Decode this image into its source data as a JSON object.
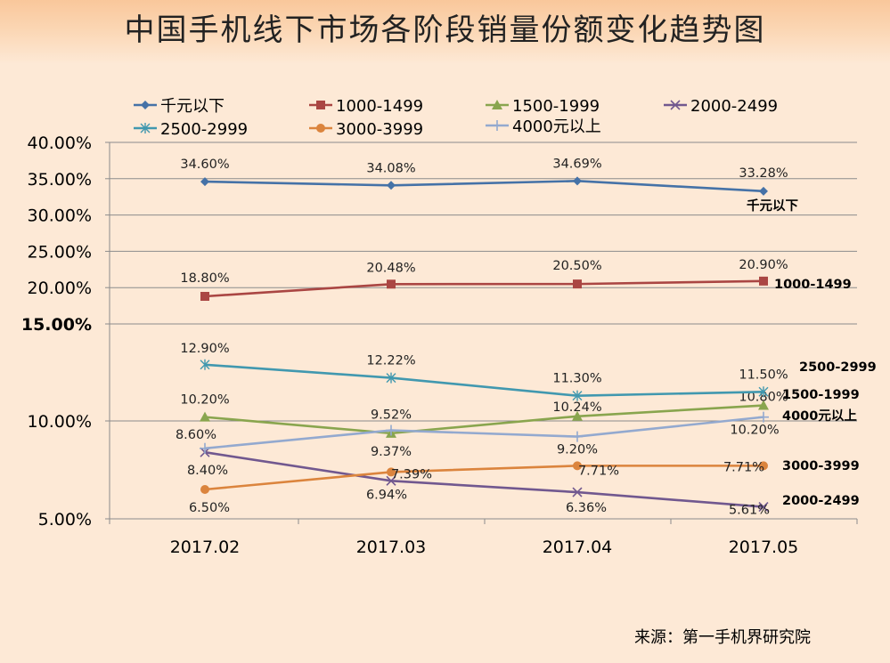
{
  "chart_data": {
    "type": "line",
    "title": "中国手机线下市场各阶段销量份额变化趋势图",
    "categories": [
      "2017.02",
      "2017.03",
      "2017.04",
      "2017.05"
    ],
    "y_ticks": [
      "5.00%",
      "10.00%",
      "15.00%",
      "20.00%",
      "25.00%",
      "30.00%",
      "35.00%",
      "40.00%"
    ],
    "ylim": [
      5,
      40
    ],
    "grid": true,
    "legend_position": "top",
    "series": [
      {
        "name": "千元以下",
        "marker": "diamond",
        "color": "#4572a7",
        "values": [
          34.6,
          34.08,
          34.69,
          33.28
        ],
        "labels": [
          "34.60%",
          "34.08%",
          "34.69%",
          "33.28%"
        ],
        "end_label": "千元以下"
      },
      {
        "name": "1000-1499",
        "marker": "square",
        "color": "#aa4643",
        "values": [
          18.8,
          20.48,
          20.5,
          20.9
        ],
        "labels": [
          "18.80%",
          "20.48%",
          "20.50%",
          "20.90%"
        ],
        "end_label": "1000-1499"
      },
      {
        "name": "1500-1999",
        "marker": "triangle",
        "color": "#89a54e",
        "values": [
          10.2,
          9.37,
          10.24,
          10.8
        ],
        "labels": [
          "10.20%",
          "9.37%",
          "10.24%",
          "10.80%"
        ],
        "end_label": "1500-1999"
      },
      {
        "name": "2000-2499",
        "marker": "x",
        "color": "#71588f",
        "values": [
          8.4,
          6.94,
          6.36,
          5.61
        ],
        "labels": [
          "8.40%",
          "6.94%",
          "6.36%",
          "5.61%"
        ],
        "end_label": "2000-2499"
      },
      {
        "name": "2500-2999",
        "marker": "star",
        "color": "#4198af",
        "values": [
          12.9,
          12.22,
          11.3,
          11.5
        ],
        "labels": [
          "12.90%",
          "12.22%",
          "11.30%",
          "11.50%"
        ],
        "end_label": "2500-2999"
      },
      {
        "name": "3000-3999",
        "marker": "circle",
        "color": "#db843d",
        "values": [
          6.5,
          7.39,
          7.71,
          7.71
        ],
        "labels": [
          "6.50%",
          "7.39%",
          "7.71%",
          "7.71%"
        ],
        "end_label": "3000-3999"
      },
      {
        "name": "4000元以上",
        "marker": "plus",
        "color": "#93a9cf",
        "values": [
          8.6,
          9.52,
          9.2,
          10.2
        ],
        "labels": [
          "8.60%",
          "9.52%",
          "9.20%",
          "10.20%"
        ],
        "end_label": "4000元以上"
      }
    ]
  },
  "source_text": "来源：第一手机界研究院"
}
